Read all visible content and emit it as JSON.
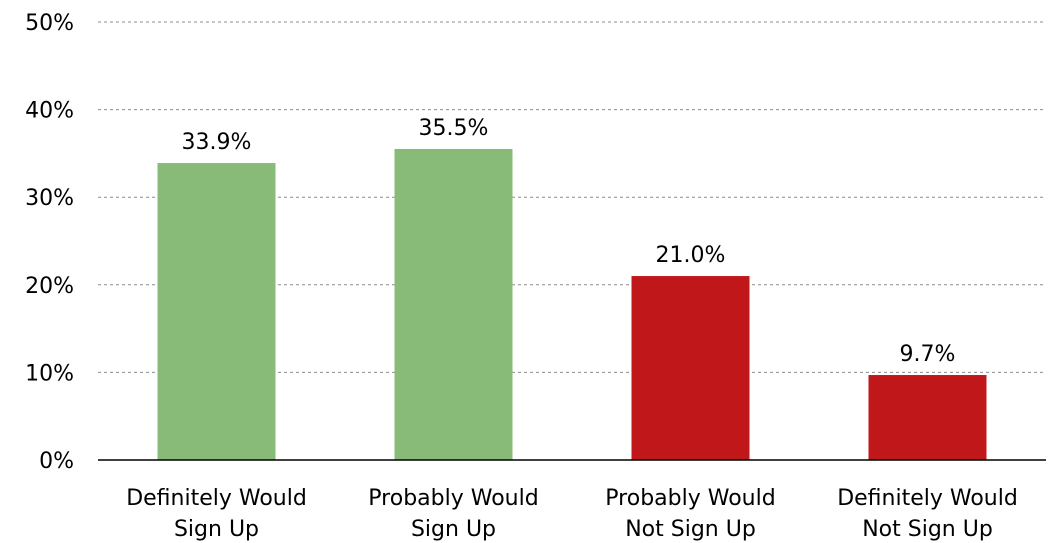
{
  "chart_data": {
    "type": "bar",
    "categories": [
      [
        "Definitely Would",
        "Sign Up"
      ],
      [
        "Probably Would",
        "Sign Up"
      ],
      [
        "Probably Would",
        "Not Sign Up"
      ],
      [
        "Definitely Would",
        "Not Sign Up"
      ]
    ],
    "values": [
      33.9,
      35.5,
      21.0,
      9.7
    ],
    "data_labels": [
      "33.9%",
      "35.5%",
      "21.0%",
      "9.7%"
    ],
    "colors": [
      "#88bb77",
      "#88bb77",
      "#c0181a",
      "#c0181a"
    ],
    "ylim": [
      0,
      50
    ],
    "y_ticks": [
      0,
      10,
      20,
      30,
      40,
      50
    ],
    "y_tick_labels": [
      "0%",
      "10%",
      "20%",
      "30%",
      "40%",
      "50%"
    ],
    "grid": true,
    "title": "",
    "xlabel": "",
    "ylabel": ""
  }
}
